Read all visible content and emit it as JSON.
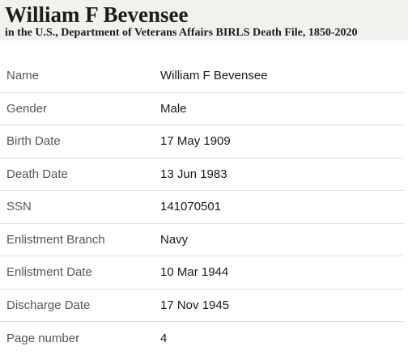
{
  "header": {
    "title": "William F Bevensee",
    "subtitle": "in the U.S., Department of Veterans Affairs BIRLS Death File, 1850-2020"
  },
  "records": [
    {
      "label": "Name",
      "value": "William F Bevensee"
    },
    {
      "label": "Gender",
      "value": "Male"
    },
    {
      "label": "Birth Date",
      "value": "17 May 1909"
    },
    {
      "label": "Death Date",
      "value": "13 Jun 1983"
    },
    {
      "label": "SSN",
      "value": "141070501"
    },
    {
      "label": "Enlistment Branch",
      "value": "Navy"
    },
    {
      "label": "Enlistment Date",
      "value": "10 Mar 1944"
    },
    {
      "label": "Discharge Date",
      "value": "17 Nov 1945"
    },
    {
      "label": "Page number",
      "value": "4"
    }
  ]
}
